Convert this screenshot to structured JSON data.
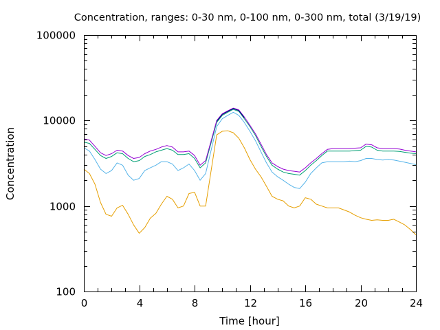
{
  "chart_data": {
    "type": "line",
    "title": "Concentration, ranges: 0-30 nm, 0-100 nm, 0-300 nm, total (3/19/19)",
    "xlabel": "Time [hour]",
    "ylabel": "Concentration",
    "xlim": [
      0,
      24
    ],
    "ylim": [
      100,
      100000
    ],
    "yscale": "log",
    "grid": false,
    "legend": "none",
    "x_ticks": [
      0,
      4,
      8,
      12,
      16,
      20,
      24
    ],
    "x_tick_labels": [
      "0",
      "4",
      "8",
      "12",
      "16",
      "20",
      "24"
    ],
    "y_ticks": [
      100,
      1000,
      10000,
      100000
    ],
    "y_tick_labels": [
      "100",
      "1000",
      "10000",
      "100000"
    ],
    "series": [
      {
        "color": "#e69f00",
        "x": [
          0,
          0.4,
          0.8,
          1.2,
          1.6,
          2.0,
          2.4,
          2.8,
          3.2,
          3.6,
          4.0,
          4.4,
          4.8,
          5.2,
          5.6,
          6.0,
          6.4,
          6.8,
          7.2,
          7.6,
          8.0,
          8.4,
          8.8,
          9.2,
          9.6,
          10.0,
          10.4,
          10.8,
          11.2,
          11.6,
          12.0,
          12.4,
          12.8,
          13.2,
          13.6,
          14.0,
          14.4,
          14.8,
          15.2,
          15.6,
          16.0,
          16.4,
          16.8,
          17.2,
          17.6,
          18.0,
          18.4,
          18.8,
          19.2,
          19.6,
          20.0,
          20.4,
          20.8,
          21.2,
          21.6,
          22.0,
          22.4,
          22.8,
          23.2,
          23.6,
          24.0
        ],
        "values": [
          2700,
          2400,
          1800,
          1100,
          800,
          760,
          950,
          1020,
          800,
          600,
          480,
          560,
          720,
          820,
          1050,
          1300,
          1200,
          950,
          1000,
          1400,
          1450,
          1000,
          1000,
          2600,
          6800,
          7500,
          7600,
          7200,
          6200,
          4800,
          3500,
          2700,
          2200,
          1700,
          1300,
          1200,
          1150,
          1000,
          950,
          1000,
          1250,
          1200,
          1050,
          1000,
          950,
          950,
          950,
          900,
          850,
          780,
          730,
          700,
          680,
          690,
          680,
          680,
          700,
          650,
          600,
          530,
          460
        ]
      },
      {
        "color": "#56b4e9",
        "x": [
          0,
          0.4,
          0.8,
          1.2,
          1.6,
          2.0,
          2.4,
          2.8,
          3.2,
          3.6,
          4.0,
          4.4,
          4.8,
          5.2,
          5.6,
          6.0,
          6.4,
          6.8,
          7.2,
          7.6,
          8.0,
          8.4,
          8.8,
          9.2,
          9.6,
          10.0,
          10.4,
          10.8,
          11.2,
          11.6,
          12.0,
          12.4,
          12.8,
          13.2,
          13.6,
          14.0,
          14.4,
          14.8,
          15.2,
          15.6,
          16.0,
          16.4,
          16.8,
          17.2,
          17.6,
          18.0,
          18.4,
          18.8,
          19.2,
          19.6,
          20.0,
          20.4,
          20.8,
          21.2,
          21.6,
          22.0,
          22.4,
          22.8,
          23.2,
          23.6,
          24.0
        ],
        "values": [
          4800,
          4400,
          3500,
          2700,
          2400,
          2600,
          3200,
          3000,
          2300,
          2000,
          2100,
          2600,
          2800,
          3000,
          3300,
          3300,
          3100,
          2600,
          2800,
          3100,
          2600,
          2000,
          2400,
          4500,
          8500,
          10500,
          11500,
          12500,
          11500,
          9500,
          7500,
          5800,
          4300,
          3200,
          2500,
          2200,
          2000,
          1800,
          1650,
          1600,
          1900,
          2400,
          2800,
          3200,
          3300,
          3300,
          3300,
          3300,
          3350,
          3300,
          3400,
          3600,
          3600,
          3500,
          3450,
          3500,
          3450,
          3350,
          3250,
          3150,
          3050
        ]
      },
      {
        "color": "#009e73",
        "x": [
          0,
          0.4,
          0.8,
          1.2,
          1.6,
          2.0,
          2.4,
          2.8,
          3.2,
          3.6,
          4.0,
          4.4,
          4.8,
          5.2,
          5.6,
          6.0,
          6.4,
          6.8,
          7.2,
          7.6,
          8.0,
          8.4,
          8.8,
          9.2,
          9.6,
          10.0,
          10.4,
          10.8,
          11.2,
          11.6,
          12.0,
          12.4,
          12.8,
          13.2,
          13.6,
          14.0,
          14.4,
          14.8,
          15.2,
          15.6,
          16.0,
          16.4,
          16.8,
          17.2,
          17.6,
          18.0,
          18.4,
          18.8,
          19.2,
          19.6,
          20.0,
          20.4,
          20.8,
          21.2,
          21.6,
          22.0,
          22.4,
          22.8,
          23.2,
          23.6,
          24.0
        ],
        "values": [
          5600,
          5400,
          4600,
          3900,
          3600,
          3800,
          4200,
          4100,
          3600,
          3300,
          3400,
          3800,
          4000,
          4300,
          4500,
          4700,
          4500,
          4000,
          4000,
          4100,
          3600,
          2800,
          3200,
          5500,
          9500,
          11500,
          12500,
          13500,
          12800,
          10500,
          8500,
          6700,
          5000,
          3800,
          3000,
          2700,
          2500,
          2400,
          2350,
          2300,
          2600,
          3000,
          3400,
          3900,
          4400,
          4400,
          4400,
          4400,
          4400,
          4450,
          4500,
          5000,
          4900,
          4500,
          4400,
          4400,
          4400,
          4350,
          4250,
          4150,
          4100
        ]
      },
      {
        "color": "#9400d3",
        "x": [
          0,
          0.4,
          0.8,
          1.2,
          1.6,
          2.0,
          2.4,
          2.8,
          3.2,
          3.6,
          4.0,
          4.4,
          4.8,
          5.2,
          5.6,
          6.0,
          6.4,
          6.8,
          7.2,
          7.6,
          8.0,
          8.4,
          8.8,
          9.2,
          9.6,
          10.0,
          10.4,
          10.8,
          11.2,
          11.6,
          12.0,
          12.4,
          12.8,
          13.2,
          13.6,
          14.0,
          14.4,
          14.8,
          15.2,
          15.6,
          16.0,
          16.4,
          16.8,
          17.2,
          17.6,
          18.0,
          18.4,
          18.8,
          19.2,
          19.6,
          20.0,
          20.4,
          20.8,
          21.2,
          21.6,
          22.0,
          22.4,
          22.8,
          23.2,
          23.6,
          24.0
        ],
        "values": [
          6100,
          5900,
          5000,
          4200,
          3900,
          4100,
          4500,
          4400,
          3900,
          3600,
          3700,
          4100,
          4400,
          4600,
          4900,
          5100,
          4900,
          4300,
          4300,
          4400,
          3900,
          3000,
          3400,
          5800,
          10000,
          12000,
          13000,
          14000,
          13300,
          11000,
          8800,
          7000,
          5300,
          4000,
          3200,
          2900,
          2700,
          2600,
          2550,
          2500,
          2800,
          3200,
          3600,
          4100,
          4600,
          4700,
          4700,
          4700,
          4700,
          4750,
          4800,
          5300,
          5200,
          4800,
          4700,
          4700,
          4700,
          4650,
          4500,
          4400,
          4300
        ]
      },
      {
        "color": "#000080",
        "x": [
          9.6,
          10.0,
          10.4,
          10.8,
          11.2,
          11.6
        ],
        "values": [
          9800,
          11800,
          12800,
          13800,
          13100,
          10800
        ]
      }
    ]
  }
}
